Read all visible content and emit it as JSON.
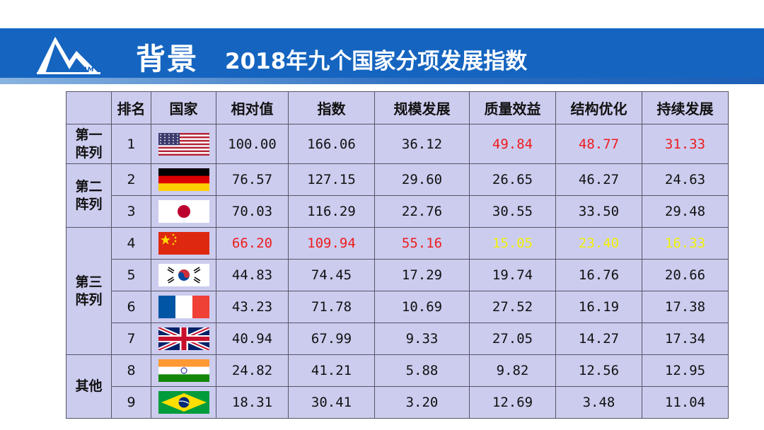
{
  "header": {
    "title": "背景",
    "subtitle": "2018年九个国家分项发展指数",
    "logo_text": "CAM"
  },
  "colors": {
    "banner": "#1565c0",
    "table_bg": "#ccccef",
    "highlight_red": "#ee1c1c",
    "highlight_yellow": "#f2f20a"
  },
  "table": {
    "columns": [
      "排名",
      "国家",
      "相对值",
      "指数",
      "规模发展",
      "质量效益",
      "结构优化",
      "持续发展"
    ],
    "tiers": [
      {
        "label": "第一阵列",
        "label_lines": [
          "第一",
          "阵列"
        ],
        "ranks": [
          1
        ]
      },
      {
        "label": "第二阵列",
        "label_lines": [
          "第二",
          "阵列"
        ],
        "ranks": [
          2,
          3
        ]
      },
      {
        "label": "第三阵列",
        "label_lines": [
          "第三",
          "阵列"
        ],
        "ranks": [
          4,
          5,
          6,
          7
        ]
      },
      {
        "label": "其他",
        "label_lines": [
          "其他"
        ],
        "ranks": [
          8,
          9
        ]
      }
    ],
    "rows": [
      {
        "rank": "1",
        "flag": "usa-flag-icon",
        "relative": "100.00",
        "index": "166.06",
        "scale": "36.12",
        "quality": "49.84",
        "structure": "48.77",
        "sustainable": "31.33",
        "highlight": {
          "quality": "red",
          "structure": "red",
          "sustainable": "red"
        }
      },
      {
        "rank": "2",
        "flag": "germany-flag-icon",
        "relative": "76.57",
        "index": "127.15",
        "scale": "29.60",
        "quality": "26.65",
        "structure": "46.27",
        "sustainable": "24.63",
        "highlight": {}
      },
      {
        "rank": "3",
        "flag": "japan-flag-icon",
        "relative": "70.03",
        "index": "116.29",
        "scale": "22.76",
        "quality": "30.55",
        "structure": "33.50",
        "sustainable": "29.48",
        "highlight": {}
      },
      {
        "rank": "4",
        "flag": "china-flag-icon",
        "relative": "66.20",
        "index": "109.94",
        "scale": "55.16",
        "quality": "15.05",
        "structure": "23.40",
        "sustainable": "16.33",
        "highlight": {
          "relative": "red",
          "index": "red",
          "scale": "red",
          "quality": "yellow",
          "structure": "yellow",
          "sustainable": "yellow"
        }
      },
      {
        "rank": "5",
        "flag": "korea-flag-icon",
        "relative": "44.83",
        "index": "74.45",
        "scale": "17.29",
        "quality": "19.74",
        "structure": "16.76",
        "sustainable": "20.66",
        "highlight": {}
      },
      {
        "rank": "6",
        "flag": "france-flag-icon",
        "relative": "43.23",
        "index": "71.78",
        "scale": "10.69",
        "quality": "27.52",
        "structure": "16.19",
        "sustainable": "17.38",
        "highlight": {}
      },
      {
        "rank": "7",
        "flag": "uk-flag-icon",
        "relative": "40.94",
        "index": "67.99",
        "scale": "9.33",
        "quality": "27.05",
        "structure": "14.27",
        "sustainable": "17.34",
        "highlight": {}
      },
      {
        "rank": "8",
        "flag": "india-flag-icon",
        "relative": "24.82",
        "index": "41.21",
        "scale": "5.88",
        "quality": "9.82",
        "structure": "12.56",
        "sustainable": "12.95",
        "highlight": {}
      },
      {
        "rank": "9",
        "flag": "brazil-flag-icon",
        "relative": "18.31",
        "index": "30.41",
        "scale": "3.20",
        "quality": "12.69",
        "structure": "3.48",
        "sustainable": "11.04",
        "highlight": {}
      }
    ]
  }
}
